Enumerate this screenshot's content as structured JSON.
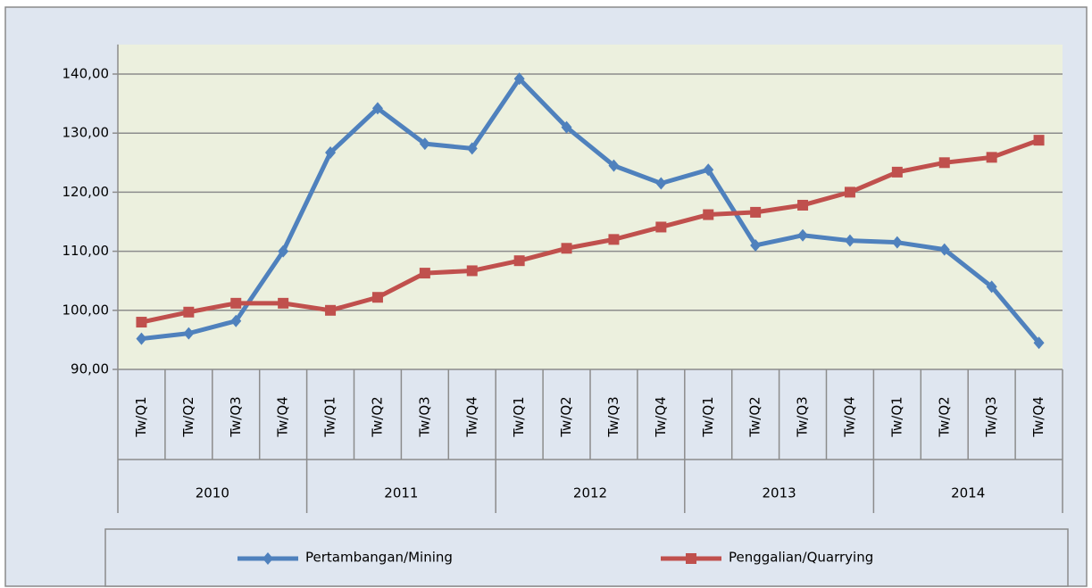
{
  "chart_data": {
    "type": "line",
    "categories": [
      "Tw/Q1",
      "Tw/Q2",
      "Tw/Q3",
      "Tw/Q4",
      "Tw/Q1",
      "Tw/Q2",
      "Tw/Q3",
      "Tw/Q4",
      "Tw/Q1",
      "Tw/Q2",
      "Tw/Q3",
      "Tw/Q4",
      "Tw/Q1",
      "Tw/Q2",
      "Tw/Q3",
      "Tw/Q4",
      "Tw/Q1",
      "Tw/Q2",
      "Tw/Q3",
      "Tw/Q4"
    ],
    "category_groups": [
      "2010",
      "2011",
      "2012",
      "2013",
      "2014"
    ],
    "series": [
      {
        "name": "Pertambangan/Mining",
        "color": "#4f81bd",
        "marker": "diamond",
        "values": [
          95.2,
          96.1,
          98.2,
          110,
          126.7,
          134.2,
          128.2,
          127.4,
          139.2,
          131,
          124.5,
          121.5,
          123.8,
          111,
          112.7,
          111.8,
          111.5,
          110.3,
          104,
          94.5
        ]
      },
      {
        "name": "Penggalian/Quarrying",
        "color": "#c0504d",
        "marker": "square",
        "values": [
          98,
          99.7,
          101.2,
          101.2,
          100,
          102.2,
          106.3,
          106.7,
          108.4,
          110.5,
          112,
          114.1,
          116.2,
          116.6,
          117.8,
          120,
          123.4,
          125,
          125.9,
          128.8
        ]
      }
    ],
    "ylim": [
      90,
      145
    ],
    "yticks": [
      {
        "value": 90,
        "label": "90,00"
      },
      {
        "value": 100,
        "label": "100,00"
      },
      {
        "value": 110,
        "label": "110,00"
      },
      {
        "value": 120,
        "label": "120,00"
      },
      {
        "value": 130,
        "label": "130,00"
      },
      {
        "value": 140,
        "label": "140,00"
      }
    ],
    "grid": true,
    "legend": "bottom"
  }
}
